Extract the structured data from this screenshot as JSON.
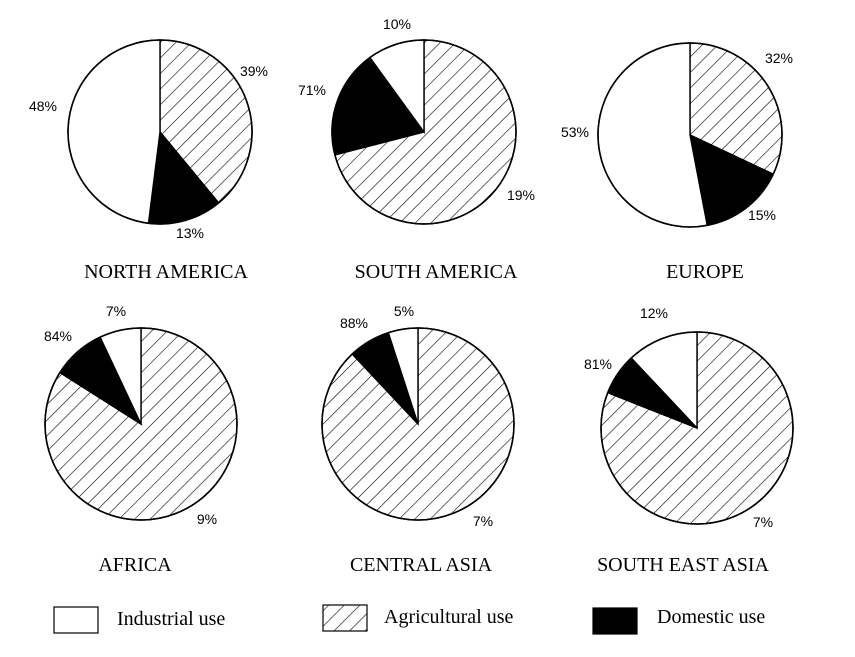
{
  "chart_data": [
    {
      "type": "pie",
      "region": "NORTH AMERICA",
      "categories": [
        "Industrial use",
        "Agricultural use",
        "Domestic use"
      ],
      "values": [
        48,
        39,
        13
      ],
      "labels": [
        "48%",
        "39%",
        "13%"
      ]
    },
    {
      "type": "pie",
      "region": "SOUTH AMERICA",
      "categories": [
        "Industrial use",
        "Agricultural use",
        "Domestic use"
      ],
      "values": [
        10,
        71,
        19
      ],
      "labels": [
        "10%",
        "71%",
        "19%"
      ]
    },
    {
      "type": "pie",
      "region": "EUROPE",
      "categories": [
        "Industrial use",
        "Agricultural use",
        "Domestic use"
      ],
      "values": [
        53,
        32,
        15
      ],
      "labels": [
        "53%",
        "32%",
        "15%"
      ]
    },
    {
      "type": "pie",
      "region": "AFRICA",
      "categories": [
        "Industrial use",
        "Agricultural use",
        "Domestic use"
      ],
      "values": [
        7,
        84,
        9
      ],
      "labels": [
        "7%",
        "84%",
        "9%"
      ]
    },
    {
      "type": "pie",
      "region": "CENTRAL ASIA",
      "categories": [
        "Industrial use",
        "Agricultural use",
        "Domestic use"
      ],
      "values": [
        5,
        88,
        7
      ],
      "labels": [
        "5%",
        "88%",
        "7%"
      ]
    },
    {
      "type": "pie",
      "region": "SOUTH EAST ASIA",
      "categories": [
        "Industrial use",
        "Agricultural use",
        "Domestic use"
      ],
      "values": [
        12,
        81,
        7
      ],
      "labels": [
        "12%",
        "81%",
        "7%"
      ]
    }
  ],
  "legend": [
    {
      "label": "Industrial use",
      "fill": "#ffffff",
      "pattern": "none"
    },
    {
      "label": "Agricultural use",
      "fill": "#ffffff",
      "pattern": "hatch"
    },
    {
      "label": "Domestic use",
      "fill": "#000000",
      "pattern": "none"
    }
  ],
  "colors": {
    "industrial": "#ffffff",
    "agricultural_hatch": "#000000",
    "domestic": "#000000",
    "outline": "#000000"
  }
}
